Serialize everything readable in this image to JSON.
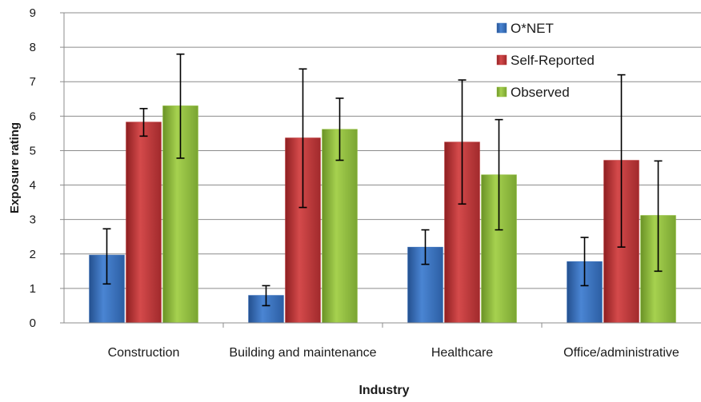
{
  "chart_data": {
    "type": "bar",
    "title": "",
    "xlabel": "Industry",
    "ylabel": "Exposure rating",
    "ylim": [
      0,
      9
    ],
    "yticks": [
      "0",
      "1",
      "2",
      "3",
      "4",
      "5",
      "6",
      "7",
      "8",
      "9"
    ],
    "grid": true,
    "legend_position": "top-right",
    "categories": [
      "Construction",
      "Building and maintenance",
      "Healthcare",
      "Office/administrative"
    ],
    "series": [
      {
        "name": "O*NET",
        "color": "#3f76c0",
        "values": [
          1.97,
          0.8,
          2.2,
          1.78
        ],
        "error_low": [
          1.13,
          0.5,
          1.7,
          1.08
        ],
        "error_high": [
          2.73,
          1.08,
          2.7,
          2.48
        ]
      },
      {
        "name": "Self-Reported",
        "color": "#c0393a",
        "values": [
          5.83,
          5.37,
          5.25,
          4.72
        ],
        "error_low": [
          5.42,
          3.35,
          3.45,
          2.2
        ],
        "error_high": [
          6.22,
          7.37,
          7.05,
          7.2
        ]
      },
      {
        "name": "Observed",
        "color": "#94c03d",
        "values": [
          6.3,
          5.62,
          4.3,
          3.12
        ],
        "error_low": [
          4.78,
          4.72,
          2.7,
          1.5
        ],
        "error_high": [
          7.8,
          6.52,
          5.9,
          4.7
        ]
      }
    ]
  }
}
